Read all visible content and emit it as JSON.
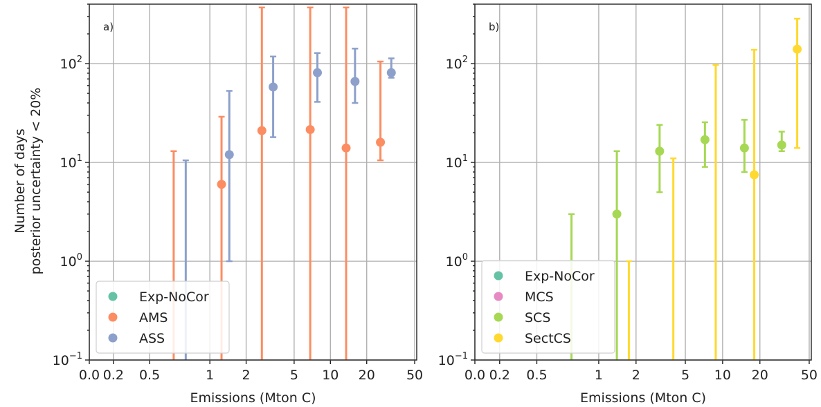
{
  "chart_data": [
    {
      "type": "scatter",
      "panel_label": "a)",
      "xlabel": "Emissions (Mton C)",
      "ylabel_lines": [
        "Number of days",
        "posterior uncertainty < 20%"
      ],
      "x_scale": "symlog",
      "x_ticks": [
        "0.0",
        "0.2",
        "0.5",
        "1",
        "2",
        "5",
        "10",
        "20",
        "50"
      ],
      "y_scale": "log",
      "y_ticks": [
        {
          "base": "10",
          "exp": "−1"
        },
        {
          "base": "10",
          "exp": "0"
        },
        {
          "base": "10",
          "exp": "1"
        },
        {
          "base": "10",
          "exp": "2"
        }
      ],
      "ylim": [
        0.1,
        400
      ],
      "grid": true,
      "legend_position": "lower-left",
      "series": [
        {
          "name": "Exp-NoCor",
          "color": "#66c2a5",
          "points": []
        },
        {
          "name": "AMS",
          "color": "#fc8d62",
          "points": [
            {
              "x": 0.7,
              "y": null,
              "y_low": 0.1,
              "y_high": 13
            },
            {
              "x": 1.25,
              "y": 6,
              "y_low": 0.1,
              "y_high": 29
            },
            {
              "x": 2.7,
              "y": 21,
              "y_low": 0.1,
              "y_high": 370
            },
            {
              "x": 6.8,
              "y": 21.5,
              "y_low": 0.1,
              "y_high": 370
            },
            {
              "x": 13.5,
              "y": 14,
              "y_low": 0.1,
              "y_high": 370
            },
            {
              "x": 26.0,
              "y": 16,
              "y_low": 10.5,
              "y_high": 105
            }
          ]
        },
        {
          "name": "ASS",
          "color": "#8da0cb",
          "points": [
            {
              "x": 0.8,
              "y": null,
              "y_low": 0.1,
              "y_high": 10.5
            },
            {
              "x": 1.45,
              "y": 12,
              "y_low": 1.0,
              "y_high": 53
            },
            {
              "x": 3.35,
              "y": 58,
              "y_low": 18,
              "y_high": 118
            },
            {
              "x": 7.8,
              "y": 81,
              "y_low": 41,
              "y_high": 128
            },
            {
              "x": 16.0,
              "y": 66,
              "y_low": 40,
              "y_high": 142
            },
            {
              "x": 32.0,
              "y": 81,
              "y_low": 72,
              "y_high": 113
            }
          ]
        }
      ]
    },
    {
      "type": "scatter",
      "panel_label": "b)",
      "xlabel": "Emissions (Mton C)",
      "x_scale": "symlog",
      "x_ticks": [
        "0.0",
        "0.2",
        "0.5",
        "1",
        "2",
        "5",
        "10",
        "20",
        "50"
      ],
      "y_scale": "log",
      "y_ticks": [
        {
          "base": "10",
          "exp": "−1"
        },
        {
          "base": "10",
          "exp": "0"
        },
        {
          "base": "10",
          "exp": "1"
        },
        {
          "base": "10",
          "exp": "2"
        }
      ],
      "ylim": [
        0.1,
        400
      ],
      "grid": true,
      "legend_position": "lower-left",
      "series": [
        {
          "name": "Exp-NoCor",
          "color": "#66c2a5",
          "points": []
        },
        {
          "name": "MCS",
          "color": "#e78ac3",
          "points": []
        },
        {
          "name": "SCS",
          "color": "#a6d854",
          "points": [
            {
              "x": 0.78,
              "y": null,
              "y_low": 0.1,
              "y_high": 3.0
            },
            {
              "x": 1.4,
              "y": 3.0,
              "y_low": 0.1,
              "y_high": 13
            },
            {
              "x": 3.1,
              "y": 13,
              "y_low": 5.0,
              "y_high": 24
            },
            {
              "x": 7.2,
              "y": 17,
              "y_low": 9.0,
              "y_high": 25.5
            },
            {
              "x": 15.0,
              "y": 14,
              "y_low": 8.0,
              "y_high": 27
            },
            {
              "x": 30.0,
              "y": 15,
              "y_low": 13,
              "y_high": 20.5
            }
          ]
        },
        {
          "name": "SectCS",
          "color": "#ffd92f",
          "points": [
            {
              "x": 1.75,
              "y": null,
              "y_low": 0.1,
              "y_high": 1.0
            },
            {
              "x": 4.0,
              "y": null,
              "y_low": 0.1,
              "y_high": 11
            },
            {
              "x": 8.8,
              "y": null,
              "y_low": 0.1,
              "y_high": 97
            },
            {
              "x": 18.0,
              "y": 7.5,
              "y_low": 0.1,
              "y_high": 138
            },
            {
              "x": 40.0,
              "y": 140,
              "y_low": 14,
              "y_high": 285
            }
          ]
        }
      ]
    }
  ]
}
